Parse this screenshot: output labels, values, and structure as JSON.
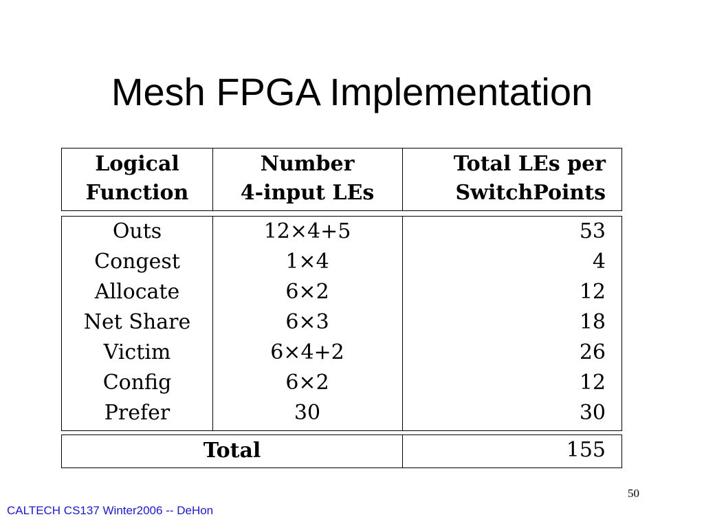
{
  "slide": {
    "title": "Mesh FPGA Implementation",
    "page_number": "50",
    "footer": "CALTECH CS137 Winter2006 -- DeHon"
  },
  "table": {
    "headers": {
      "col1": [
        "Logical",
        "Function"
      ],
      "col2": [
        "Number",
        "4-input LEs"
      ],
      "col3": [
        "Total LEs per",
        "SwitchPoints"
      ]
    },
    "rows": [
      {
        "function": "Outs",
        "number": "12×4+5",
        "total": "53"
      },
      {
        "function": "Congest",
        "number": "1×4",
        "total": "4"
      },
      {
        "function": "Allocate",
        "number": "6×2",
        "total": "12"
      },
      {
        "function": "Net Share",
        "number": "6×3",
        "total": "18"
      },
      {
        "function": "Victim",
        "number": "6×4+2",
        "total": "26"
      },
      {
        "function": "Config",
        "number": "6×2",
        "total": "12"
      },
      {
        "function": "Prefer",
        "number": "30",
        "total": "30"
      }
    ],
    "total": {
      "label": "Total",
      "value": "155"
    }
  }
}
